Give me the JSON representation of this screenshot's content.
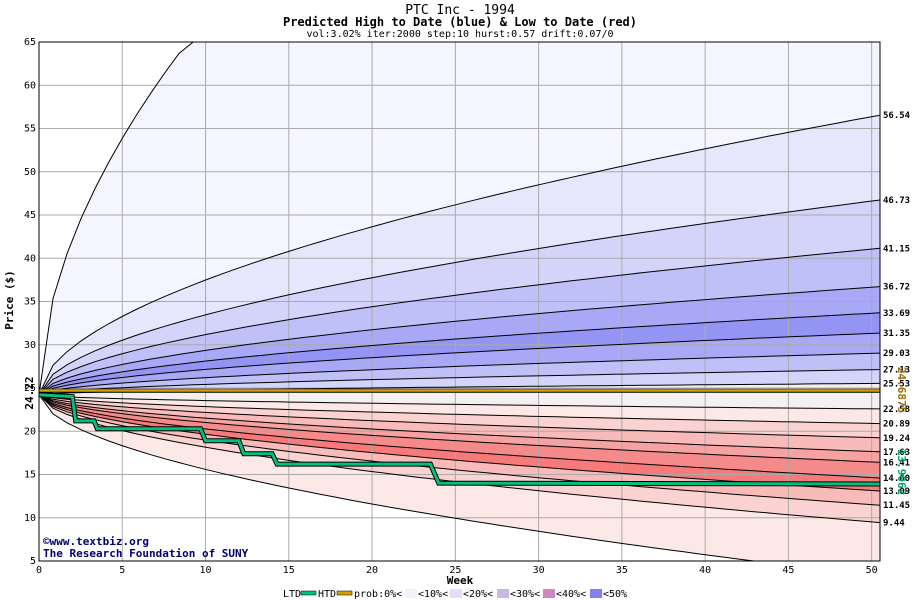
{
  "chart_data": {
    "type": "area",
    "title": "PTC Inc - 1994",
    "subtitle": "Predicted High to Date (blue) &  Low to Date (red)",
    "params": "vol:3.02% iter:2000 step:10 hurst:0.57 drift:0.07/0",
    "xlabel": "Week",
    "ylabel": "Price ($)",
    "xlim": [
      0,
      50.5
    ],
    "ylim": [
      5,
      65
    ],
    "xticks": [
      0,
      5,
      10,
      15,
      20,
      25,
      30,
      35,
      40,
      45,
      50
    ],
    "yticks": [
      5,
      10,
      15,
      20,
      25,
      30,
      35,
      40,
      45,
      50,
      55,
      60,
      65
    ],
    "grid": true,
    "start_price": 24.22,
    "start_label": "24.22",
    "htd_final_label": "24.6875",
    "ltd_final_label": "13.9062",
    "credit_line1": "©www.textbiz.org",
    "credit_line2": "The Research Foundation of SUNY",
    "high_quantiles": [
      {
        "label": "56.54",
        "end": 56.54
      },
      {
        "label": "46.73",
        "end": 46.73
      },
      {
        "label": "41.15",
        "end": 41.15
      },
      {
        "label": "36.72",
        "end": 36.72
      },
      {
        "label": "33.69",
        "end": 33.69
      },
      {
        "label": "31.35",
        "end": 31.35
      },
      {
        "label": "29.03",
        "end": 29.03
      },
      {
        "label": "27.13",
        "end": 27.13
      },
      {
        "label": "25.53",
        "end": 25.53
      }
    ],
    "low_quantiles": [
      {
        "label": "22.58",
        "end": 22.58
      },
      {
        "label": "20.89",
        "end": 20.89
      },
      {
        "label": "19.24",
        "end": 19.24
      },
      {
        "label": "17.63",
        "end": 17.63
      },
      {
        "label": "16.41",
        "end": 16.41
      },
      {
        "label": "14.60",
        "end": 14.6
      },
      {
        "label": "13.09",
        "end": 13.09
      },
      {
        "label": "11.45",
        "end": 11.45
      },
      {
        "label": "9.44",
        "end": 9.44
      }
    ],
    "htd_series": {
      "name": "HTD",
      "x": [
        0,
        50.5
      ],
      "y": [
        24.6875,
        24.6875
      ]
    },
    "ltd_series": {
      "name": "LTD",
      "x": [
        0,
        2,
        2.2,
        3.3,
        3.5,
        9.7,
        10,
        12,
        12.3,
        14,
        14.3,
        23.5,
        24,
        50.5
      ],
      "y": [
        24.22,
        24.0,
        21.2,
        21.2,
        20.3,
        20.3,
        18.9,
        18.9,
        17.4,
        17.4,
        16.2,
        16.2,
        14.0,
        13.9062
      ]
    },
    "legend": [
      {
        "label": "LTD",
        "color": "#00c080"
      },
      {
        "label": "HTD",
        "color": "#d4a000"
      },
      {
        "label": "prob:0%<",
        "color": "#ffffff"
      },
      {
        "label": "<10%<",
        "color": "#f3f0fc"
      },
      {
        "label": "<20%<",
        "color": "#e6dcf6"
      },
      {
        "label": "<30%<",
        "color": "#cbb6e6"
      },
      {
        "label": "<40%<",
        "color": "#cc88c4"
      },
      {
        "label": "<50%",
        "color": "#8080f0"
      }
    ],
    "colors": {
      "high_bands": [
        "#f5f5ff",
        "#e6e6fc",
        "#d4d4fa",
        "#c0c0f8",
        "#a8a8f6",
        "#9494f4",
        "#a8a8f6",
        "#c0c0f8",
        "#d4d4fa"
      ],
      "low_bands": [
        "#fde8e8",
        "#fbd2d2",
        "#f9baba",
        "#f7a2a2",
        "#f58a8a",
        "#f77a7a",
        "#f9baba",
        "#fbd2d2",
        "#fde8e8"
      ],
      "htd": "#d4a000",
      "ltd": "#00c080",
      "grid": "#aaaaaa"
    }
  },
  "legend_text": {
    "ltd": "LTD",
    "htd": "HTD",
    "p0": "prob:0%<",
    "p10": "<10%<",
    "p20": "<20%<",
    "p30": "<30%<",
    "p40": "<40%<",
    "p50": "<50%"
  }
}
